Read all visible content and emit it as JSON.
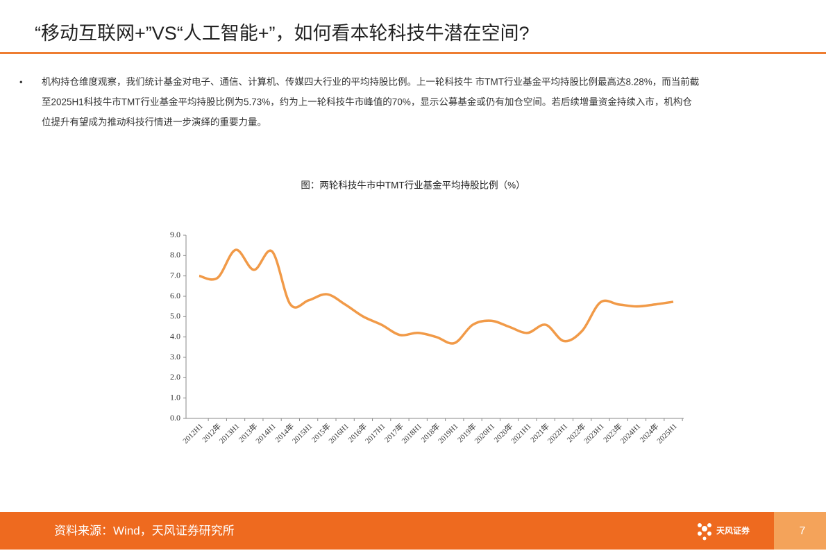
{
  "header": {
    "title": "“移动互联网+”VS“人工智能+”，如何看本轮科技牛潜在空间?"
  },
  "body": {
    "bullet": "•",
    "lines": [
      "机构持仓维度观察，我们统计基金对电子、通信、计算机、传媒四大行业的平均持股比例。上一轮科技牛 市TMT行业基金平均持股比例最高达8.28%，而当前截",
      "至2025H1科技牛市TMT行业基金平均持股比例为5.73%，约为上一轮科技牛市峰值的70%，显示公募基金或仍有加仓空间。若后续增量资金持续入市，机构仓",
      "位提升有望成为推动科技行情进一步演绎的重要力量。"
    ]
  },
  "chart_data": {
    "type": "line",
    "title": "图：两轮科技牛市中TMT行业基金平均持股比例（%）",
    "categories": [
      "2012H1",
      "2012年",
      "2013H1",
      "2013年",
      "2014H1",
      "2014年",
      "2015H1",
      "2015年",
      "2016H1",
      "2016年",
      "2017H1",
      "2017年",
      "2018H1",
      "2018年",
      "2019H1",
      "2019年",
      "2020H1",
      "2020年",
      "2021H1",
      "2021年",
      "2022H1",
      "2022年",
      "2023H1",
      "2023年",
      "2024H1",
      "2024年",
      "2025H1"
    ],
    "values": [
      7.0,
      6.9,
      8.28,
      7.3,
      8.2,
      5.6,
      5.8,
      6.1,
      5.6,
      5.0,
      4.6,
      4.1,
      4.2,
      4.0,
      3.7,
      4.6,
      4.8,
      4.5,
      4.2,
      4.6,
      3.8,
      4.3,
      5.7,
      5.6,
      5.5,
      5.6,
      5.73
    ],
    "color": "#f19a48",
    "smooth": true,
    "ylim": [
      0,
      9
    ],
    "yticks": [
      {
        "value": 0,
        "label": "0.0"
      },
      {
        "value": 1,
        "label": "1.0"
      },
      {
        "value": 2,
        "label": "2.0"
      },
      {
        "value": 3,
        "label": "3.0"
      },
      {
        "value": 4,
        "label": "4.0"
      },
      {
        "value": 5,
        "label": "5.0"
      },
      {
        "value": 6,
        "label": "6.0"
      },
      {
        "value": 7,
        "label": "7.0"
      },
      {
        "value": 8,
        "label": "8.0"
      },
      {
        "value": 9,
        "label": "9.0"
      }
    ]
  },
  "footer": {
    "source": "资料来源：Wind，天风证券研究所",
    "logo": "天风证券",
    "page": "7"
  }
}
